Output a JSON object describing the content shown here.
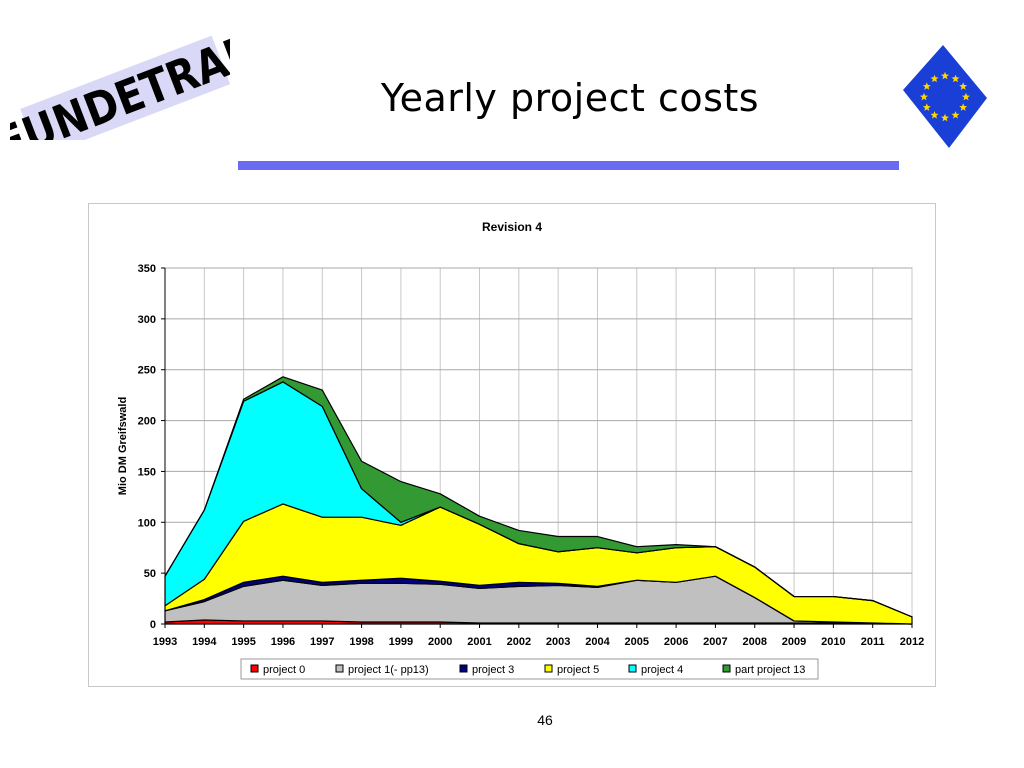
{
  "logo": {
    "text": "EUNDETRAF",
    "icon": "eundetraf-logo"
  },
  "slide": {
    "title": "Yearly project costs",
    "page_number": "46"
  },
  "flag": {
    "icon": "eu-flag-icon",
    "colors": {
      "field": "#1a3fd6",
      "stars": "#ffd700"
    }
  },
  "chart_data": {
    "type": "area",
    "stacked": true,
    "title": "Revision 4",
    "ylabel": "Mio DM    Greifswald",
    "xlabel": "",
    "ylim": [
      0,
      350
    ],
    "yticks": [
      0,
      50,
      100,
      150,
      200,
      250,
      300,
      350
    ],
    "grid": true,
    "legend_position": "bottom",
    "categories": [
      "1993",
      "1994",
      "1995",
      "1996",
      "1997",
      "1998",
      "1999",
      "2000",
      "2001",
      "2002",
      "2003",
      "2004",
      "2005",
      "2006",
      "2007",
      "2008",
      "2009",
      "2010",
      "2011",
      "2012"
    ],
    "series": [
      {
        "name": "project 0",
        "color": "#ff0000",
        "values": [
          2,
          4,
          3,
          3,
          3,
          2,
          2,
          2,
          1,
          1,
          1,
          1,
          1,
          1,
          1,
          1,
          1,
          1,
          1,
          0
        ]
      },
      {
        "name": "project 1(- pp13)",
        "color": "#c0c0c0",
        "values": [
          11,
          18,
          34,
          40,
          35,
          38,
          38,
          37,
          34,
          36,
          37,
          35,
          42,
          40,
          46,
          25,
          2,
          1,
          0,
          0
        ]
      },
      {
        "name": "project 3",
        "color": "#000080",
        "values": [
          0,
          2,
          4,
          4,
          3,
          3,
          5,
          3,
          3,
          4,
          2,
          1,
          0,
          0,
          0,
          0,
          0,
          0,
          0,
          0
        ]
      },
      {
        "name": "project 5",
        "color": "#ffff00",
        "values": [
          5,
          20,
          60,
          71,
          64,
          62,
          52,
          73,
          60,
          38,
          31,
          38,
          27,
          34,
          29,
          30,
          24,
          25,
          22,
          7
        ]
      },
      {
        "name": "project 4",
        "color": "#00ffff",
        "values": [
          29,
          68,
          118,
          120,
          109,
          28,
          3,
          0,
          0,
          0,
          0,
          0,
          0,
          0,
          0,
          0,
          0,
          0,
          0,
          0
        ]
      },
      {
        "name": "part project 13",
        "color": "#339933",
        "values": [
          0,
          0,
          2,
          5,
          16,
          27,
          40,
          13,
          8,
          13,
          15,
          11,
          6,
          3,
          0,
          0,
          0,
          0,
          0,
          0
        ]
      }
    ]
  }
}
